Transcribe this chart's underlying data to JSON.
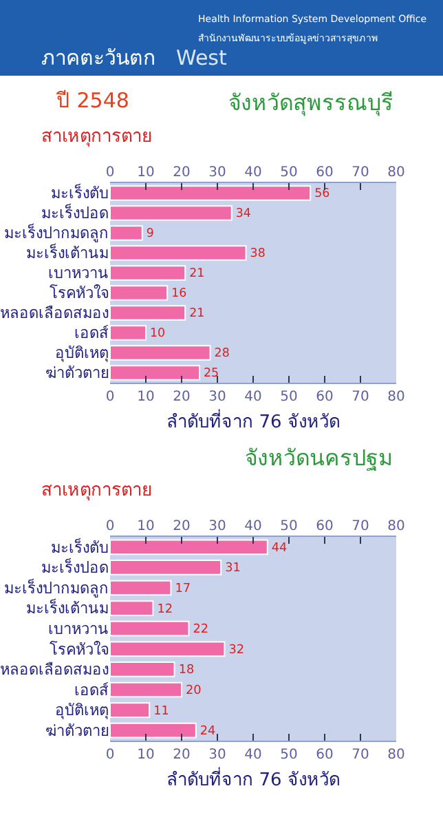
{
  "chart_data": [
    {
      "type": "bar",
      "orientation": "horizontal",
      "title": "จังหวัดสุพรรณบุรี",
      "ylabel": "สาเหตุการตาย",
      "xlabel": "ลำดับที่จาก 76 จังหวัด",
      "annotations": [
        "ภาคตะวันตก",
        "West",
        "Health Information System Development Office",
        "สำนักงานพัฒนาระบบข้อมูลข่าวสารสุขภาพ",
        "ปี 2548"
      ],
      "categories": [
        "มะเร็งตับ",
        "มะเร็งปอด",
        "มะเร็งปากมดลูก",
        "มะเร็งเต้านม",
        "เบาหวาน",
        "โรคหัวใจ",
        "หลอดเลือดสมอง",
        "เอดส์",
        "อุบัติเหตุ",
        "ฆ่าตัวตาย"
      ],
      "values": [
        56,
        34,
        9,
        38,
        21,
        16,
        21,
        10,
        28,
        25
      ],
      "color": "#f06aa8",
      "data_labels": true,
      "grid": false,
      "xlim": [
        0,
        80
      ],
      "xticks": [
        0,
        10,
        20,
        30,
        40,
        50,
        60,
        70,
        80
      ],
      "x2lim": [
        0,
        80
      ],
      "x2ticks": [
        0,
        10,
        20,
        30,
        40,
        50,
        60,
        70,
        80
      ]
    },
    {
      "type": "bar",
      "orientation": "horizontal",
      "title": "จังหวัดนครปฐม",
      "ylabel": "สาเหตุการตาย",
      "xlabel": "ลำดับที่จาก 76 จังหวัด",
      "categories": [
        "มะเร็งตับ",
        "มะเร็งปอด",
        "มะเร็งปากมดลูก",
        "มะเร็งเต้านม",
        "เบาหวาน",
        "โรคหัวใจ",
        "หลอดเลือดสมอง",
        "เอดส์",
        "อุบัติเหตุ",
        "ฆ่าตัวตาย"
      ],
      "values": [
        44,
        31,
        17,
        12,
        22,
        32,
        18,
        20,
        11,
        24
      ],
      "color": "#f06aa8",
      "data_labels": true,
      "grid": false,
      "xlim": [
        0,
        80
      ],
      "xticks": [
        0,
        10,
        20,
        30,
        40,
        50,
        60,
        70,
        80
      ],
      "x2lim": [
        0,
        80
      ],
      "x2ticks": [
        0,
        10,
        20,
        30,
        40,
        50,
        60,
        70,
        80
      ]
    }
  ]
}
